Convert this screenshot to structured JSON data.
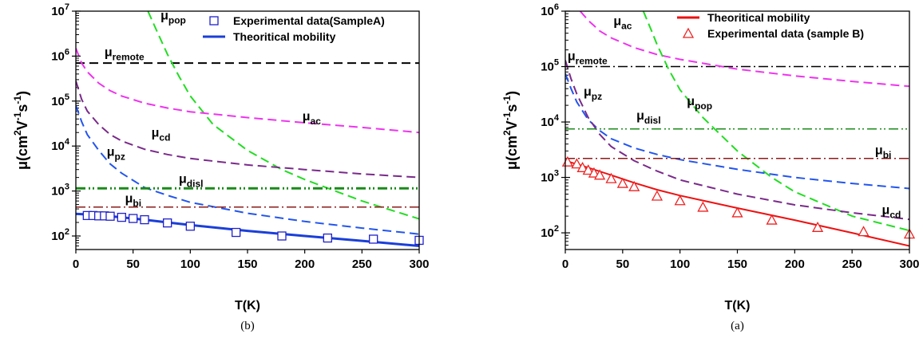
{
  "chart_data": [
    {
      "panel_label": "(b)",
      "type": "line",
      "xlabel": "T(K)",
      "ylabel_prefix": "μ(cm",
      "ylabel_sup1": "2",
      "ylabel_mid": "V",
      "ylabel_sup2": "-1",
      "ylabel_s": "s",
      "ylabel_sup3": "-1",
      "ylabel_close": ")",
      "xlim": [
        0,
        300
      ],
      "ylim": [
        50,
        10000000
      ],
      "yscale": "log",
      "x_ticks": [
        0,
        50,
        100,
        150,
        200,
        250,
        300
      ],
      "y_ticks": [
        {
          "value": 100,
          "base": "10",
          "exp": "2"
        },
        {
          "value": 1000,
          "base": "10",
          "exp": "3"
        },
        {
          "value": 10000,
          "base": "10",
          "exp": "4"
        },
        {
          "value": 100000,
          "base": "10",
          "exp": "5"
        },
        {
          "value": 1000000,
          "base": "10",
          "exp": "6"
        },
        {
          "value": 10000000,
          "base": "10",
          "exp": "7"
        }
      ],
      "legend": {
        "placement": "top-right",
        "entries": [
          {
            "label": "Experimental data(SampleA)",
            "kind": "marker",
            "marker": "square",
            "color": "#2020cc"
          },
          {
            "label": "Theoritical mobility",
            "kind": "line",
            "color": "#1a3fd9"
          }
        ]
      },
      "series": [
        {
          "name": "μremote",
          "color": "#000000",
          "dash": "dash",
          "width": 2,
          "points": [
            [
              0,
              700000
            ],
            [
              300,
              700000
            ]
          ]
        },
        {
          "name": "μpop",
          "color": "#22dd22",
          "dash": "dash",
          "width": 2,
          "points": [
            [
              63,
              10000000
            ],
            [
              70,
              4000000
            ],
            [
              80,
              1100000
            ],
            [
              90,
              360000
            ],
            [
              100,
              130000
            ],
            [
              120,
              30000
            ],
            [
              150,
              8000
            ],
            [
              180,
              3000
            ],
            [
              200,
              1800
            ],
            [
              250,
              600
            ],
            [
              300,
              240
            ]
          ]
        },
        {
          "name": "μac",
          "color": "#ee33ee",
          "dash": "dash",
          "width": 2,
          "points": [
            [
              0,
              1500000
            ],
            [
              5,
              700000
            ],
            [
              10,
              450000
            ],
            [
              20,
              250000
            ],
            [
              30,
              170000
            ],
            [
              40,
              130000
            ],
            [
              60,
              90000
            ],
            [
              80,
              70000
            ],
            [
              100,
              58000
            ],
            [
              150,
              43000
            ],
            [
              200,
              33000
            ],
            [
              250,
              26000
            ],
            [
              300,
              20000
            ]
          ]
        },
        {
          "name": "μcd",
          "color": "#7a2a8a",
          "dash": "dash",
          "width": 2,
          "points": [
            [
              0,
              280000
            ],
            [
              5,
              110000
            ],
            [
              10,
              60000
            ],
            [
              20,
              30000
            ],
            [
              30,
              18000
            ],
            [
              40,
              13000
            ],
            [
              60,
              8500
            ],
            [
              80,
              6500
            ],
            [
              100,
              5300
            ],
            [
              150,
              3800
            ],
            [
              200,
              3000
            ],
            [
              250,
              2400
            ],
            [
              300,
              2000
            ]
          ]
        },
        {
          "name": "μpz",
          "color": "#2255ee",
          "dash": "dash",
          "width": 2,
          "points": [
            [
              0,
              80000
            ],
            [
              5,
              35000
            ],
            [
              10,
              18000
            ],
            [
              20,
              8000
            ],
            [
              30,
              4000
            ],
            [
              40,
              2500
            ],
            [
              60,
              1200
            ],
            [
              80,
              800
            ],
            [
              100,
              560
            ],
            [
              150,
              320
            ],
            [
              200,
              210
            ],
            [
              250,
              150
            ],
            [
              300,
              110
            ]
          ]
        },
        {
          "name": "μdisl",
          "color": "#1a8a1a",
          "dash": "dashdotdot",
          "width": 3,
          "points": [
            [
              0,
              1150
            ],
            [
              300,
              1150
            ]
          ]
        },
        {
          "name": "μbi",
          "color": "#8b1a1a",
          "dash": "dashdot",
          "width": 1.5,
          "points": [
            [
              0,
              440
            ],
            [
              300,
              440
            ]
          ]
        },
        {
          "name": "Theoritical mobility",
          "color": "#1a3fd9",
          "dash": "solid",
          "width": 3,
          "points": [
            [
              0,
              310
            ],
            [
              20,
              290
            ],
            [
              40,
              260
            ],
            [
              60,
              230
            ],
            [
              80,
              200
            ],
            [
              100,
              175
            ],
            [
              150,
              130
            ],
            [
              200,
              100
            ],
            [
              250,
              78
            ],
            [
              300,
              60
            ]
          ]
        }
      ],
      "markers": {
        "name": "Experimental data(SampleA)",
        "shape": "square",
        "color": "#2020cc",
        "points": [
          [
            10,
            285
          ],
          [
            15,
            285
          ],
          [
            20,
            280
          ],
          [
            25,
            280
          ],
          [
            30,
            275
          ],
          [
            40,
            260
          ],
          [
            50,
            245
          ],
          [
            60,
            230
          ],
          [
            80,
            195
          ],
          [
            100,
            165
          ],
          [
            140,
            120
          ],
          [
            180,
            100
          ],
          [
            220,
            90
          ],
          [
            260,
            85
          ],
          [
            300,
            80
          ]
        ]
      },
      "annotations": [
        {
          "base": "μ",
          "sub": "remote",
          "x": 25,
          "y": 1000000
        },
        {
          "base": "μ",
          "sub": "pop",
          "x": 74,
          "y": 6500000
        },
        {
          "base": "μ",
          "sub": "ac",
          "x": 198,
          "y": 37000
        },
        {
          "base": "μ",
          "sub": "cd",
          "x": 66,
          "y": 16000
        },
        {
          "base": "μ",
          "sub": "pz",
          "x": 27,
          "y": 6000
        },
        {
          "base": "μ",
          "sub": "disl",
          "x": 90,
          "y": 1500
        },
        {
          "base": "μ",
          "sub": "bi",
          "x": 43,
          "y": 560
        }
      ]
    },
    {
      "panel_label": "(a)",
      "type": "line",
      "xlabel": "T(K)",
      "ylabel_prefix": "μ(cm",
      "ylabel_sup1": "2",
      "ylabel_mid": "V",
      "ylabel_sup2": "-1",
      "ylabel_s": "s",
      "ylabel_sup3": "-1",
      "ylabel_close": ")",
      "xlim": [
        0,
        300
      ],
      "ylim": [
        50,
        1000000
      ],
      "yscale": "log",
      "x_ticks": [
        0,
        50,
        100,
        150,
        200,
        250,
        300
      ],
      "y_ticks": [
        {
          "value": 100,
          "base": "10",
          "exp": "2"
        },
        {
          "value": 1000,
          "base": "10",
          "exp": "3"
        },
        {
          "value": 10000,
          "base": "10",
          "exp": "4"
        },
        {
          "value": 100000,
          "base": "10",
          "exp": "5"
        },
        {
          "value": 1000000,
          "base": "10",
          "exp": "6"
        }
      ],
      "legend": {
        "placement": "top-right",
        "entries": [
          {
            "label": "Theoritical mobility",
            "kind": "line",
            "color": "#ee1111"
          },
          {
            "label": "Experimental data (sample B)",
            "kind": "marker",
            "marker": "triangle",
            "color": "#ee2222"
          }
        ]
      },
      "series": [
        {
          "name": "μremote",
          "color": "#000000",
          "dash": "dashdot",
          "width": 1.5,
          "points": [
            [
              0,
              100000
            ],
            [
              300,
              100000
            ]
          ]
        },
        {
          "name": "μac",
          "color": "#ee33ee",
          "dash": "dash",
          "width": 2,
          "points": [
            [
              13,
              1000000
            ],
            [
              20,
              680000
            ],
            [
              30,
              440000
            ],
            [
              40,
              330000
            ],
            [
              60,
              220000
            ],
            [
              80,
              165000
            ],
            [
              100,
              135000
            ],
            [
              150,
              90000
            ],
            [
              200,
              68000
            ],
            [
              250,
              54000
            ],
            [
              300,
              44000
            ]
          ]
        },
        {
          "name": "μpop",
          "color": "#22dd22",
          "dash": "dash",
          "width": 2,
          "points": [
            [
              68,
              1000000
            ],
            [
              75,
              450000
            ],
            [
              80,
              250000
            ],
            [
              90,
              90000
            ],
            [
              100,
              38000
            ],
            [
              120,
              12000
            ],
            [
              150,
              3000
            ],
            [
              180,
              1000
            ],
            [
              200,
              550
            ],
            [
              250,
              200
            ],
            [
              300,
              110
            ]
          ]
        },
        {
          "name": "μpz",
          "color": "#2255ee",
          "dash": "dash",
          "width": 2,
          "points": [
            [
              0,
              75000
            ],
            [
              5,
              40000
            ],
            [
              10,
              23000
            ],
            [
              20,
              11000
            ],
            [
              30,
              7000
            ],
            [
              40,
              5000
            ],
            [
              60,
              3400
            ],
            [
              80,
              2600
            ],
            [
              100,
              2100
            ],
            [
              150,
              1400
            ],
            [
              200,
              1000
            ],
            [
              250,
              780
            ],
            [
              300,
              630
            ]
          ]
        },
        {
          "name": "μcd",
          "color": "#7a2a8a",
          "dash": "dash",
          "width": 2,
          "points": [
            [
              0,
              130000
            ],
            [
              5,
              60000
            ],
            [
              10,
              32000
            ],
            [
              20,
              12000
            ],
            [
              30,
              6000
            ],
            [
              40,
              3600
            ],
            [
              60,
              2000
            ],
            [
              80,
              1300
            ],
            [
              100,
              900
            ],
            [
              150,
              500
            ],
            [
              200,
              320
            ],
            [
              250,
              230
            ],
            [
              300,
              175
            ]
          ]
        },
        {
          "name": "μdisl",
          "color": "#1a8a1a",
          "dash": "dashdotdot",
          "width": 1.5,
          "points": [
            [
              0,
              7500
            ],
            [
              300,
              7500
            ]
          ]
        },
        {
          "name": "μbi",
          "color": "#8b1a1a",
          "dash": "dashdot",
          "width": 1.5,
          "points": [
            [
              0,
              2200
            ],
            [
              300,
              2200
            ]
          ]
        },
        {
          "name": "Theoritical mobility",
          "color": "#ee1111",
          "dash": "solid",
          "width": 2,
          "points": [
            [
              0,
              2000
            ],
            [
              20,
              1500
            ],
            [
              40,
              1100
            ],
            [
              60,
              800
            ],
            [
              80,
              600
            ],
            [
              100,
              470
            ],
            [
              150,
              280
            ],
            [
              200,
              170
            ],
            [
              250,
              100
            ],
            [
              300,
              58
            ]
          ]
        }
      ],
      "markers": {
        "name": "Experimental data (sample B)",
        "shape": "triangle",
        "color": "#ee2222",
        "points": [
          [
            2,
            1900
          ],
          [
            10,
            1750
          ],
          [
            15,
            1500
          ],
          [
            20,
            1350
          ],
          [
            25,
            1200
          ],
          [
            30,
            1100
          ],
          [
            40,
            950
          ],
          [
            50,
            780
          ],
          [
            60,
            680
          ],
          [
            80,
            460
          ],
          [
            100,
            380
          ],
          [
            120,
            290
          ],
          [
            150,
            230
          ],
          [
            180,
            170
          ],
          [
            220,
            125
          ],
          [
            260,
            105
          ],
          [
            300,
            95
          ]
        ]
      },
      "annotations": [
        {
          "base": "μ",
          "sub": "ac",
          "x": 42,
          "y": 560000
        },
        {
          "base": "μ",
          "sub": "remote",
          "x": 2,
          "y": 130000
        },
        {
          "base": "μ",
          "sub": "pz",
          "x": 16,
          "y": 30000
        },
        {
          "base": "μ",
          "sub": "pop",
          "x": 106,
          "y": 20000
        },
        {
          "base": "μ",
          "sub": "disl",
          "x": 62,
          "y": 11000
        },
        {
          "base": "μ",
          "sub": "bi",
          "x": 270,
          "y": 2600
        },
        {
          "base": "μ",
          "sub": "cd",
          "x": 276,
          "y": 220
        }
      ]
    }
  ]
}
